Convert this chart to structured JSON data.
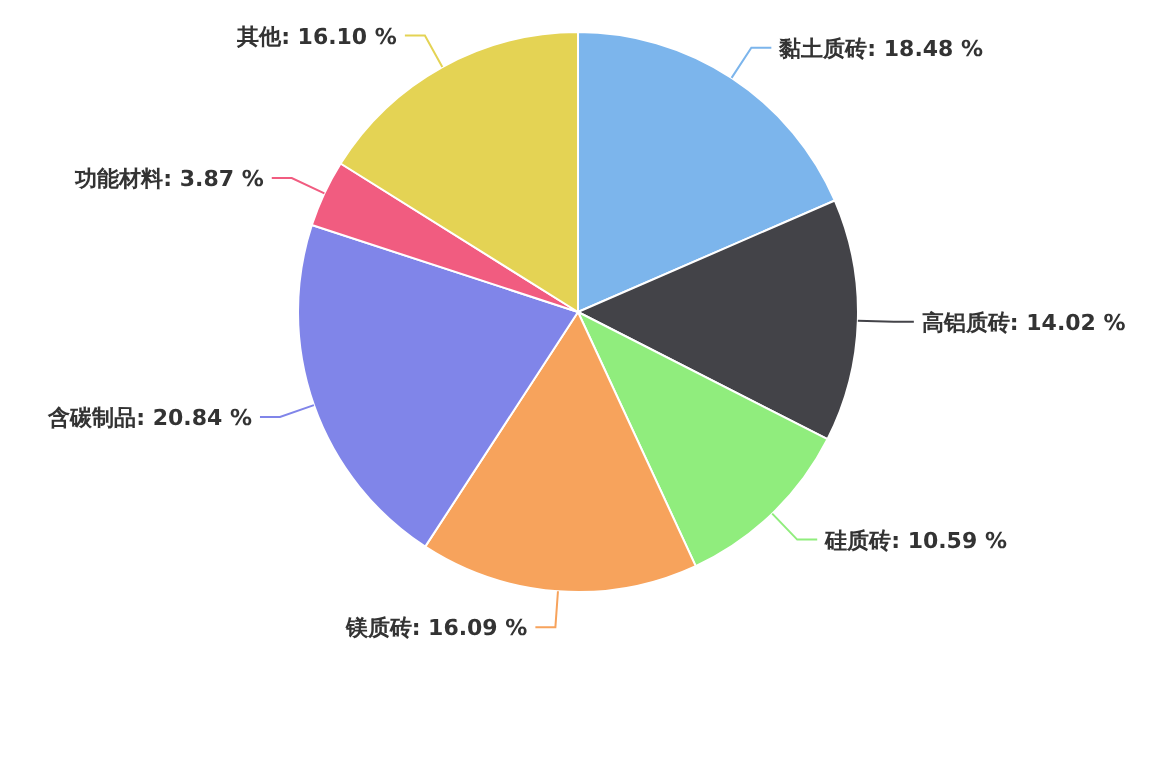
{
  "chart_data": {
    "type": "pie",
    "categories": [
      "黏土质砖",
      "高铝质砖",
      "硅质砖",
      "镁质砖",
      "含碳制品",
      "功能材料",
      "其他"
    ],
    "values": [
      18.48,
      14.02,
      10.59,
      16.09,
      20.84,
      3.87,
      16.1
    ],
    "value_labels": [
      "18.48 %",
      "14.02 %",
      "10.59 %",
      "16.09 %",
      "20.84 %",
      "3.87 %",
      "16.10 %"
    ],
    "colors": [
      "#7cb5ec",
      "#434348",
      "#90ed7d",
      "#f7a35c",
      "#8085e9",
      "#f15c80",
      "#e4d354"
    ]
  }
}
